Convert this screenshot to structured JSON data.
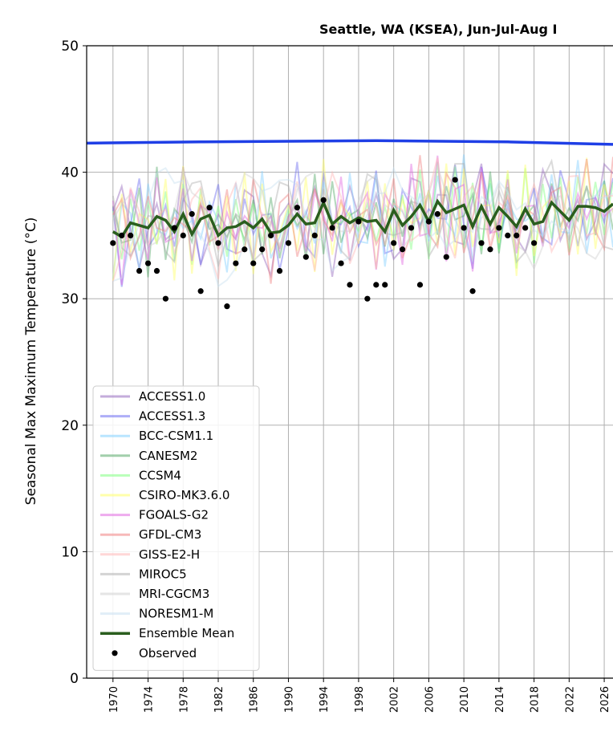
{
  "chart_data": {
    "type": "line",
    "title": "Seattle, WA (KSEA), Jun-Jul-Aug I",
    "xlabel": "",
    "ylabel": "Seasonal Max Maximum Temperature ($^\\circ$C)",
    "ylabel_display": "Seasonal Max Maximum Temperature (°C)",
    "xlim": [
      1967,
      2027
    ],
    "ylim": [
      0,
      50
    ],
    "yticks": [
      0,
      10,
      20,
      30,
      40,
      50
    ],
    "xticks": [
      1970,
      1974,
      1978,
      1982,
      1986,
      1990,
      1994,
      1998,
      2002,
      2006,
      2010,
      2014,
      2018,
      2022,
      2026
    ],
    "grid": true,
    "legend_position": "lower-left",
    "threshold_line": {
      "name": "threshold",
      "color": "#1f3fe6",
      "x": [
        1967,
        1980,
        2000,
        2015,
        2027
      ],
      "y": [
        42.3,
        42.4,
        42.5,
        42.4,
        42.2
      ]
    },
    "models": [
      {
        "name": "ACCESS1.0",
        "color": "#9467bd"
      },
      {
        "name": "ACCESS1.3",
        "color": "#6b6bf0"
      },
      {
        "name": "BCC-CSM1.1",
        "color": "#80cfff"
      },
      {
        "name": "CANESM2",
        "color": "#55a868"
      },
      {
        "name": "CCSM4",
        "color": "#80ff80"
      },
      {
        "name": "CSIRO-MK3.6.0",
        "color": "#ffff66"
      },
      {
        "name": "FGOALS-G2",
        "color": "#e066e0"
      },
      {
        "name": "GFDL-CM3",
        "color": "#f08080"
      },
      {
        "name": "GISS-E2-H",
        "color": "#ffb6b6"
      },
      {
        "name": "MIROC5",
        "color": "#b0b0b0"
      },
      {
        "name": "MRI-CGCM3",
        "color": "#d0d0d0"
      },
      {
        "name": "NORESM1-M",
        "color": "#c8e0f0"
      }
    ],
    "model_x_range": [
      1970,
      2027
    ],
    "ensemble_mean": {
      "name": "Ensemble Mean",
      "color": "#2a5e1e",
      "x": [
        1970,
        1971,
        1972,
        1973,
        1974,
        1975,
        1976,
        1977,
        1978,
        1979,
        1980,
        1981,
        1982,
        1983,
        1984,
        1985,
        1986,
        1987,
        1988,
        1989,
        1990,
        1991,
        1992,
        1993,
        1994,
        1995,
        1996,
        1997,
        1998,
        1999,
        2000,
        2001,
        2002,
        2003,
        2004,
        2005,
        2006,
        2007,
        2008,
        2009,
        2010,
        2011,
        2012,
        2013,
        2014,
        2015,
        2016,
        2017,
        2018,
        2019,
        2020,
        2021,
        2022,
        2023,
        2024,
        2025,
        2026,
        2027
      ],
      "y": [
        35.3,
        34.9,
        36.0,
        35.8,
        35.6,
        36.5,
        36.2,
        35.3,
        36.7,
        35.1,
        36.3,
        36.6,
        35.0,
        35.6,
        35.7,
        36.1,
        35.6,
        36.3,
        35.2,
        35.3,
        35.8,
        36.7,
        35.9,
        36.0,
        37.6,
        35.9,
        36.5,
        36.0,
        36.4,
        36.1,
        36.2,
        35.3,
        37.0,
        35.8,
        36.5,
        37.4,
        36.1,
        37.7,
        36.8,
        37.1,
        37.4,
        35.7,
        37.3,
        35.9,
        37.2,
        36.5,
        35.7,
        37.1,
        35.9,
        36.1,
        37.6,
        36.9,
        36.2,
        37.3,
        37.3,
        37.2,
        36.9,
        37.5
      ]
    },
    "observed": {
      "name": "Observed",
      "color": "#000000",
      "x": [
        1970,
        1971,
        1972,
        1973,
        1974,
        1975,
        1976,
        1977,
        1978,
        1979,
        1980,
        1981,
        1982,
        1983,
        1984,
        1985,
        1986,
        1987,
        1988,
        1989,
        1990,
        1991,
        1992,
        1993,
        1994,
        1995,
        1996,
        1997,
        1998,
        1999,
        2000,
        2001,
        2002,
        2003,
        2004,
        2005,
        2006,
        2007,
        2008,
        2009,
        2010,
        2011,
        2012,
        2013,
        2014,
        2015,
        2016,
        2017,
        2018
      ],
      "y": [
        34.4,
        35.0,
        35.0,
        32.2,
        32.8,
        32.2,
        30.0,
        35.6,
        35.0,
        36.7,
        30.6,
        37.2,
        34.4,
        29.4,
        32.8,
        33.9,
        32.8,
        33.9,
        35.0,
        32.2,
        34.4,
        37.2,
        33.3,
        35.0,
        37.8,
        35.6,
        32.8,
        31.1,
        36.1,
        30.0,
        31.1,
        31.1,
        34.4,
        33.9,
        35.6,
        31.1,
        36.1,
        36.7,
        33.3,
        39.4,
        35.6,
        30.6,
        34.4,
        33.9,
        35.6,
        35.0,
        35.0,
        35.6,
        34.4
      ]
    }
  }
}
